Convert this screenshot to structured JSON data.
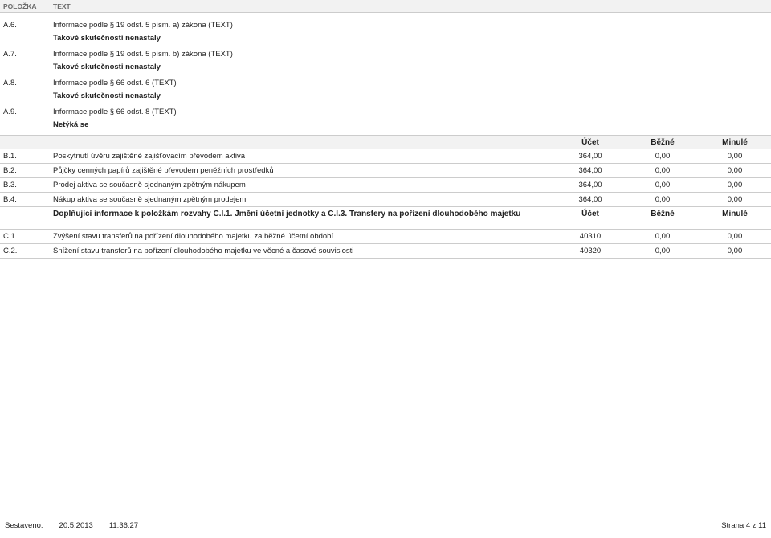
{
  "header": {
    "col_polozka": "POLOŽKA",
    "col_text": "TEXT"
  },
  "section_a": [
    {
      "code": "A.6.",
      "desc": "Informace podle § 19 odst. 5 písm. a) zákona (TEXT)",
      "note": "Takové skutečnosti nenastaly"
    },
    {
      "code": "A.7.",
      "desc": "Informace podle § 19 odst. 5 písm. b) zákona (TEXT)",
      "note": "Takové skutečnosti nenastaly"
    },
    {
      "code": "A.8.",
      "desc": "Informace podle § 66 odst. 6 (TEXT)",
      "note": "Takové skutečnosti nenastaly"
    },
    {
      "code": "A.9.",
      "desc": "Informace podle § 66 odst. 8 (TEXT)",
      "note": "Netýká se"
    }
  ],
  "b_columns": {
    "ucet": "Účet",
    "bezne": "Běžné",
    "minule": "Minulé"
  },
  "section_b": [
    {
      "code": "B.1.",
      "desc": "Poskytnutí úvěru zajištěné zajišťovacím převodem aktiva",
      "ucet": "364,00",
      "bezne": "0,00",
      "minule": "0,00"
    },
    {
      "code": "B.2.",
      "desc": "Půjčky cenných papírů zajištěné převodem peněžních prostředků",
      "ucet": "364,00",
      "bezne": "0,00",
      "minule": "0,00"
    },
    {
      "code": "B.3.",
      "desc": "Prodej aktiva se současně sjednaným zpětným nákupem",
      "ucet": "364,00",
      "bezne": "0,00",
      "minule": "0,00"
    },
    {
      "code": "B.4.",
      "desc": "Nákup aktiva se současně sjednaným zpětným prodejem",
      "ucet": "364,00",
      "bezne": "0,00",
      "minule": "0,00"
    }
  ],
  "c_header": {
    "title": "Doplňující informace k položkám rozvahy C.I.1. Jmění účetní jednotky a C.I.3. Transfery na pořízení dlouhodobého majetku",
    "ucet": "Účet",
    "bezne": "Běžné",
    "minule": "Minulé"
  },
  "section_c": [
    {
      "code": "C.1.",
      "desc": "Zvýšení stavu transferů na pořízení dlouhodobého majetku za běžné účetní období",
      "ucet": "40310",
      "bezne": "0,00",
      "minule": "0,00"
    },
    {
      "code": "C.2.",
      "desc": "Snížení stavu transferů na pořízení dlouhodobého majetku ve věcné a časové souvislosti",
      "ucet": "40320",
      "bezne": "0,00",
      "minule": "0,00"
    }
  ],
  "footer": {
    "label": "Sestaveno:",
    "date": "20.5.2013",
    "time": "11:36:27",
    "page": "Strana 4 z 11"
  }
}
